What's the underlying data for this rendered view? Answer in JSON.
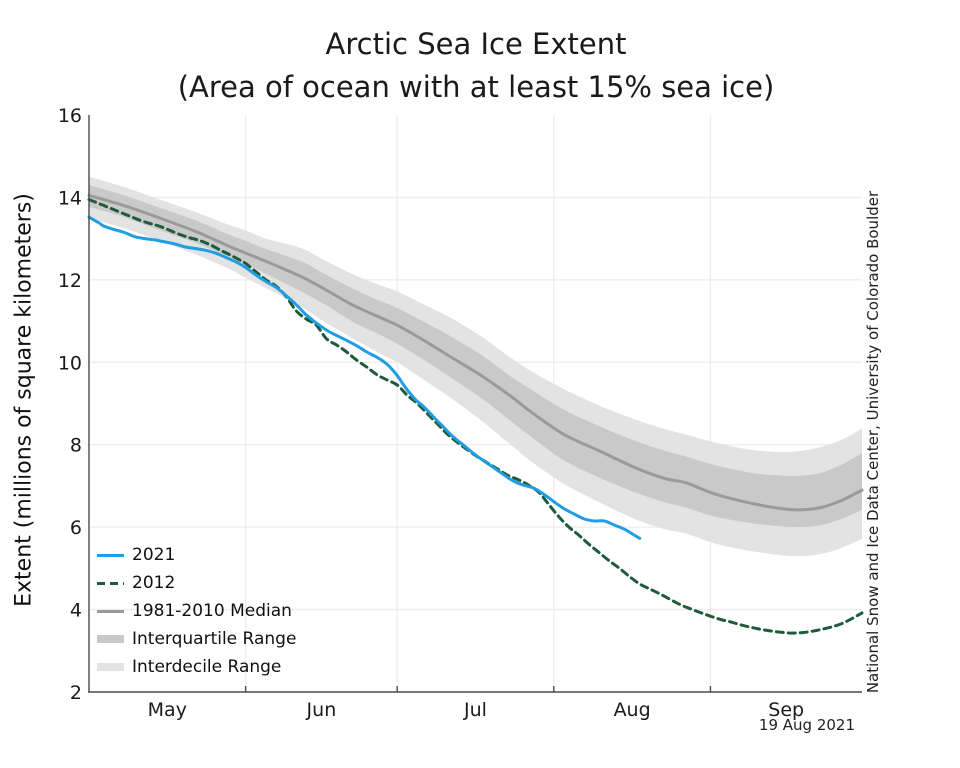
{
  "title": "Arctic Sea Ice Extent",
  "subtitle": "(Area of ocean with at least 15% sea ice)",
  "ylabel": "Extent (millions of square kilometers)",
  "annotations": {
    "date_label": "19 Aug 2021",
    "credit": "National Snow and Ice Data Center, University of Colorado Boulder"
  },
  "legend": {
    "items": [
      {
        "label": "2021",
        "swatch": "line-solid",
        "color": "#219de4"
      },
      {
        "label": "2012",
        "swatch": "line-dashed",
        "color": "#1d5b39"
      },
      {
        "label": "1981-2010 Median",
        "swatch": "line-solid",
        "color": "#9a9a9a"
      },
      {
        "label": "Interquartile Range",
        "swatch": "band",
        "color": "#c9c9c9"
      },
      {
        "label": "Interdecile Range",
        "swatch": "band",
        "color": "#e3e3e3"
      }
    ]
  },
  "chart_data": {
    "type": "line",
    "title": "Arctic Sea Ice Extent",
    "subtitle": "(Area of ocean with at least 15% sea ice)",
    "ylabel": "Extent (millions of square kilometers)",
    "ylim": [
      2,
      16
    ],
    "yticks": [
      2,
      4,
      6,
      8,
      10,
      12,
      14,
      16
    ],
    "x_domain_days": [
      0,
      153
    ],
    "x_month_starts": [
      0,
      31,
      61,
      92,
      123,
      153
    ],
    "x_month_labels": [
      "May",
      "Jun",
      "Jul",
      "Aug",
      "Sep"
    ],
    "grid_color": "#ececec",
    "axis_color": "#4a4a4a",
    "series": [
      {
        "name": "2021",
        "color": "#219de4",
        "style": "solid",
        "width": 3,
        "points": [
          [
            0,
            13.52
          ],
          [
            1,
            13.45
          ],
          [
            2,
            13.38
          ],
          [
            3,
            13.3
          ],
          [
            5,
            13.22
          ],
          [
            7,
            13.15
          ],
          [
            9,
            13.05
          ],
          [
            11,
            13.0
          ],
          [
            13,
            12.97
          ],
          [
            15,
            12.92
          ],
          [
            17,
            12.87
          ],
          [
            19,
            12.8
          ],
          [
            21,
            12.76
          ],
          [
            23,
            12.72
          ],
          [
            25,
            12.65
          ],
          [
            27,
            12.55
          ],
          [
            29,
            12.44
          ],
          [
            31,
            12.3
          ],
          [
            33,
            12.12
          ],
          [
            35,
            11.96
          ],
          [
            37,
            11.82
          ],
          [
            39,
            11.62
          ],
          [
            41,
            11.4
          ],
          [
            43,
            11.15
          ],
          [
            45,
            10.95
          ],
          [
            47,
            10.78
          ],
          [
            49,
            10.65
          ],
          [
            51,
            10.53
          ],
          [
            53,
            10.4
          ],
          [
            55,
            10.25
          ],
          [
            57,
            10.12
          ],
          [
            59,
            9.95
          ],
          [
            61,
            9.68
          ],
          [
            62,
            9.5
          ],
          [
            63,
            9.33
          ],
          [
            64,
            9.18
          ],
          [
            65,
            9.05
          ],
          [
            66,
            8.95
          ],
          [
            67,
            8.83
          ],
          [
            68,
            8.7
          ],
          [
            69,
            8.57
          ],
          [
            70,
            8.45
          ],
          [
            71,
            8.32
          ],
          [
            72,
            8.2
          ],
          [
            74,
            8.0
          ],
          [
            76,
            7.8
          ],
          [
            78,
            7.62
          ],
          [
            80,
            7.45
          ],
          [
            82,
            7.28
          ],
          [
            84,
            7.12
          ],
          [
            86,
            7.02
          ],
          [
            88,
            6.95
          ],
          [
            90,
            6.8
          ],
          [
            92,
            6.62
          ],
          [
            94,
            6.45
          ],
          [
            96,
            6.32
          ],
          [
            98,
            6.2
          ],
          [
            100,
            6.15
          ],
          [
            102,
            6.15
          ],
          [
            104,
            6.05
          ],
          [
            106,
            5.95
          ],
          [
            108,
            5.8
          ],
          [
            109,
            5.73
          ]
        ]
      },
      {
        "name": "2012",
        "color": "#1d5b39",
        "style": "dashed",
        "width": 3,
        "points": [
          [
            0,
            13.95
          ],
          [
            2,
            13.85
          ],
          [
            4,
            13.75
          ],
          [
            6,
            13.65
          ],
          [
            8,
            13.55
          ],
          [
            10,
            13.45
          ],
          [
            12,
            13.37
          ],
          [
            14,
            13.3
          ],
          [
            16,
            13.2
          ],
          [
            18,
            13.1
          ],
          [
            20,
            13.02
          ],
          [
            22,
            12.95
          ],
          [
            24,
            12.85
          ],
          [
            26,
            12.72
          ],
          [
            28,
            12.6
          ],
          [
            30,
            12.47
          ],
          [
            31,
            12.4
          ],
          [
            33,
            12.2
          ],
          [
            35,
            12.0
          ],
          [
            37,
            11.85
          ],
          [
            39,
            11.6
          ],
          [
            41,
            11.25
          ],
          [
            43,
            11.05
          ],
          [
            45,
            10.9
          ],
          [
            47,
            10.57
          ],
          [
            49,
            10.42
          ],
          [
            51,
            10.25
          ],
          [
            53,
            10.05
          ],
          [
            55,
            9.88
          ],
          [
            57,
            9.7
          ],
          [
            59,
            9.57
          ],
          [
            61,
            9.45
          ],
          [
            63,
            9.2
          ],
          [
            65,
            9.0
          ],
          [
            67,
            8.75
          ],
          [
            69,
            8.5
          ],
          [
            71,
            8.25
          ],
          [
            73,
            8.05
          ],
          [
            75,
            7.87
          ],
          [
            77,
            7.7
          ],
          [
            79,
            7.55
          ],
          [
            81,
            7.4
          ],
          [
            83,
            7.25
          ],
          [
            85,
            7.15
          ],
          [
            87,
            7.02
          ],
          [
            89,
            6.85
          ],
          [
            91,
            6.55
          ],
          [
            93,
            6.25
          ],
          [
            95,
            6.0
          ],
          [
            97,
            5.8
          ],
          [
            99,
            5.58
          ],
          [
            101,
            5.38
          ],
          [
            103,
            5.18
          ],
          [
            105,
            5.0
          ],
          [
            107,
            4.8
          ],
          [
            109,
            4.62
          ],
          [
            111,
            4.5
          ],
          [
            113,
            4.38
          ],
          [
            115,
            4.25
          ],
          [
            117,
            4.12
          ],
          [
            119,
            4.02
          ],
          [
            121,
            3.93
          ],
          [
            123,
            3.84
          ],
          [
            125,
            3.76
          ],
          [
            127,
            3.7
          ],
          [
            129,
            3.63
          ],
          [
            131,
            3.57
          ],
          [
            133,
            3.52
          ],
          [
            135,
            3.48
          ],
          [
            137,
            3.45
          ],
          [
            139,
            3.43
          ],
          [
            141,
            3.44
          ],
          [
            143,
            3.47
          ],
          [
            145,
            3.52
          ],
          [
            147,
            3.58
          ],
          [
            149,
            3.66
          ],
          [
            151,
            3.78
          ],
          [
            153,
            3.92
          ]
        ]
      },
      {
        "name": "1981-2010 Median",
        "color": "#9a9a9a",
        "style": "solid",
        "width": 3,
        "points": [
          [
            0,
            14.05
          ],
          [
            7,
            13.8
          ],
          [
            14,
            13.5
          ],
          [
            21,
            13.18
          ],
          [
            24,
            13.02
          ],
          [
            28,
            12.8
          ],
          [
            31,
            12.65
          ],
          [
            35,
            12.45
          ],
          [
            42,
            12.08
          ],
          [
            47,
            11.75
          ],
          [
            52,
            11.4
          ],
          [
            57,
            11.12
          ],
          [
            61,
            10.9
          ],
          [
            66,
            10.55
          ],
          [
            72,
            10.1
          ],
          [
            78,
            9.65
          ],
          [
            83,
            9.22
          ],
          [
            88,
            8.75
          ],
          [
            94,
            8.25
          ],
          [
            101,
            7.85
          ],
          [
            108,
            7.45
          ],
          [
            114,
            7.18
          ],
          [
            118,
            7.08
          ],
          [
            124,
            6.8
          ],
          [
            131,
            6.58
          ],
          [
            137,
            6.45
          ],
          [
            141,
            6.42
          ],
          [
            145,
            6.48
          ],
          [
            149,
            6.65
          ],
          [
            153,
            6.9
          ]
        ]
      }
    ],
    "bands": [
      {
        "name": "Interdecile Range",
        "color": "#e3e3e3",
        "days": [
          0,
          7,
          14,
          21,
          28,
          31,
          35,
          42,
          47,
          52,
          57,
          61,
          66,
          72,
          78,
          83,
          88,
          94,
          101,
          108,
          114,
          118,
          124,
          131,
          137,
          141,
          145,
          149,
          153
        ],
        "top": [
          14.5,
          14.25,
          13.95,
          13.65,
          13.32,
          13.2,
          13.0,
          12.77,
          12.45,
          12.15,
          11.9,
          11.72,
          11.42,
          11.05,
          10.6,
          10.15,
          9.75,
          9.35,
          8.95,
          8.62,
          8.38,
          8.25,
          8.05,
          7.88,
          7.82,
          7.85,
          7.95,
          8.12,
          8.4
        ],
        "bottom": [
          13.5,
          13.25,
          12.95,
          12.62,
          12.25,
          12.05,
          11.8,
          11.35,
          10.95,
          10.6,
          10.25,
          10.0,
          9.6,
          9.1,
          8.55,
          8.05,
          7.55,
          7.05,
          6.6,
          6.2,
          5.95,
          5.85,
          5.6,
          5.42,
          5.32,
          5.3,
          5.35,
          5.5,
          5.72
        ]
      },
      {
        "name": "Interquartile Range",
        "color": "#c9c9c9",
        "days": [
          0,
          7,
          14,
          21,
          28,
          31,
          35,
          42,
          47,
          52,
          57,
          61,
          66,
          72,
          78,
          83,
          88,
          94,
          101,
          108,
          114,
          118,
          124,
          131,
          137,
          141,
          145,
          149,
          153
        ],
        "top": [
          14.3,
          14.05,
          13.75,
          13.45,
          13.08,
          12.95,
          12.75,
          12.45,
          12.12,
          11.8,
          11.52,
          11.32,
          11.0,
          10.6,
          10.15,
          9.7,
          9.3,
          8.85,
          8.45,
          8.1,
          7.85,
          7.72,
          7.5,
          7.32,
          7.25,
          7.25,
          7.32,
          7.52,
          7.8
        ],
        "bottom": [
          13.77,
          13.52,
          13.2,
          12.9,
          12.55,
          12.38,
          12.15,
          11.72,
          11.38,
          11.0,
          10.7,
          10.45,
          10.08,
          9.6,
          9.1,
          8.62,
          8.15,
          7.62,
          7.2,
          6.85,
          6.6,
          6.48,
          6.25,
          6.1,
          6.02,
          6.0,
          6.05,
          6.2,
          6.42
        ]
      }
    ],
    "legend_position": "lower-left",
    "grid": true,
    "annotation_date": "19 Aug 2021",
    "credit": "National Snow and Ice Data Center, University of Colorado Boulder"
  }
}
